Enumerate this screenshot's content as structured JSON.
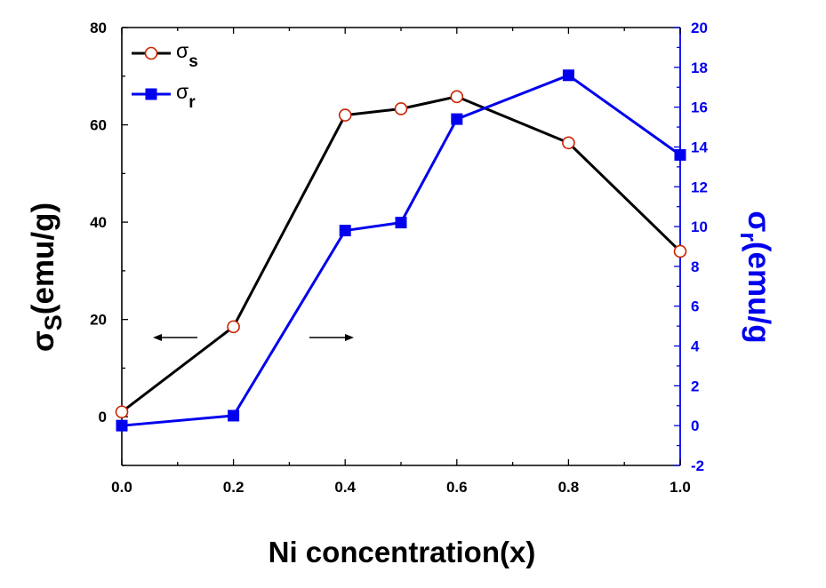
{
  "chart_data": {
    "type": "line",
    "title": "",
    "xlabel": "Ni concentration(x)",
    "ylabel_left": {
      "base": "σ",
      "sub": "S",
      "rest": "(emu/g)"
    },
    "ylabel_right": {
      "base": "σ",
      "sub": "r",
      "rest": "(emu/g"
    },
    "xlim": [
      0.0,
      1.0
    ],
    "ylim_left": [
      -10,
      80
    ],
    "ylim_right": [
      -2,
      20
    ],
    "x_ticks": [
      "0.0",
      "0.2",
      "0.4",
      "0.6",
      "0.8",
      "1.0"
    ],
    "y_left_ticks": [
      "0",
      "20",
      "40",
      "60",
      "80"
    ],
    "y_right_ticks": [
      "-2",
      "0",
      "2",
      "4",
      "6",
      "8",
      "10",
      "12",
      "14",
      "16",
      "18",
      "20"
    ],
    "grid": false,
    "legend_position": "top-left",
    "series": [
      {
        "name": {
          "base": "σ",
          "sub": "s"
        },
        "axis": "left",
        "color": "#000000",
        "marker": "open-circle",
        "marker_color": "#cc2200",
        "x": [
          0.0,
          0.2,
          0.4,
          0.5,
          0.6,
          0.8,
          1.0
        ],
        "y": [
          1.0,
          18.5,
          62.0,
          63.3,
          65.8,
          56.3,
          34.0
        ]
      },
      {
        "name": {
          "base": "σ",
          "sub": "r"
        },
        "axis": "right",
        "color": "#0000ee",
        "marker": "filled-square",
        "marker_color": "#0000ee",
        "x": [
          0.0,
          0.2,
          0.4,
          0.5,
          0.6,
          0.8,
          1.0
        ],
        "y": [
          0.0,
          0.5,
          9.8,
          10.2,
          15.4,
          17.6,
          13.6
        ]
      }
    ],
    "annotations": [
      {
        "type": "arrow",
        "direction": "left",
        "points_to": "left-axis"
      },
      {
        "type": "arrow",
        "direction": "right",
        "points_to": "right-axis"
      }
    ]
  }
}
